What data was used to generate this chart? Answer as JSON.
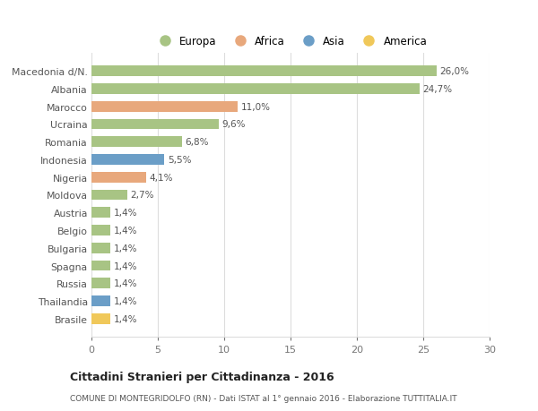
{
  "categories": [
    "Macedonia d/N.",
    "Albania",
    "Marocco",
    "Ucraina",
    "Romania",
    "Indonesia",
    "Nigeria",
    "Moldova",
    "Austria",
    "Belgio",
    "Bulgaria",
    "Spagna",
    "Russia",
    "Thailandia",
    "Brasile"
  ],
  "values": [
    26.0,
    24.7,
    11.0,
    9.6,
    6.8,
    5.5,
    4.1,
    2.7,
    1.4,
    1.4,
    1.4,
    1.4,
    1.4,
    1.4,
    1.4
  ],
  "labels": [
    "26,0%",
    "24,7%",
    "11,0%",
    "9,6%",
    "6,8%",
    "5,5%",
    "4,1%",
    "2,7%",
    "1,4%",
    "1,4%",
    "1,4%",
    "1,4%",
    "1,4%",
    "1,4%",
    "1,4%"
  ],
  "colors": [
    "#a8c484",
    "#a8c484",
    "#e8a87c",
    "#a8c484",
    "#a8c484",
    "#6b9ec7",
    "#e8a87c",
    "#a8c484",
    "#a8c484",
    "#a8c484",
    "#a8c484",
    "#a8c484",
    "#a8c484",
    "#6b9ec7",
    "#f0c85a"
  ],
  "legend_labels": [
    "Europa",
    "Africa",
    "Asia",
    "America"
  ],
  "legend_colors": [
    "#a8c484",
    "#e8a87c",
    "#6b9ec7",
    "#f0c85a"
  ],
  "title_bold": "Cittadini Stranieri per Cittadinanza - 2016",
  "subtitle": "COMUNE DI MONTEGRIDOLFO (RN) - Dati ISTAT al 1° gennaio 2016 - Elaborazione TUTTITALIA.IT",
  "xlim": [
    0,
    30
  ],
  "xticks": [
    0,
    5,
    10,
    15,
    20,
    25,
    30
  ],
  "background_color": "#ffffff",
  "grid_color": "#dddddd",
  "bar_height": 0.6
}
